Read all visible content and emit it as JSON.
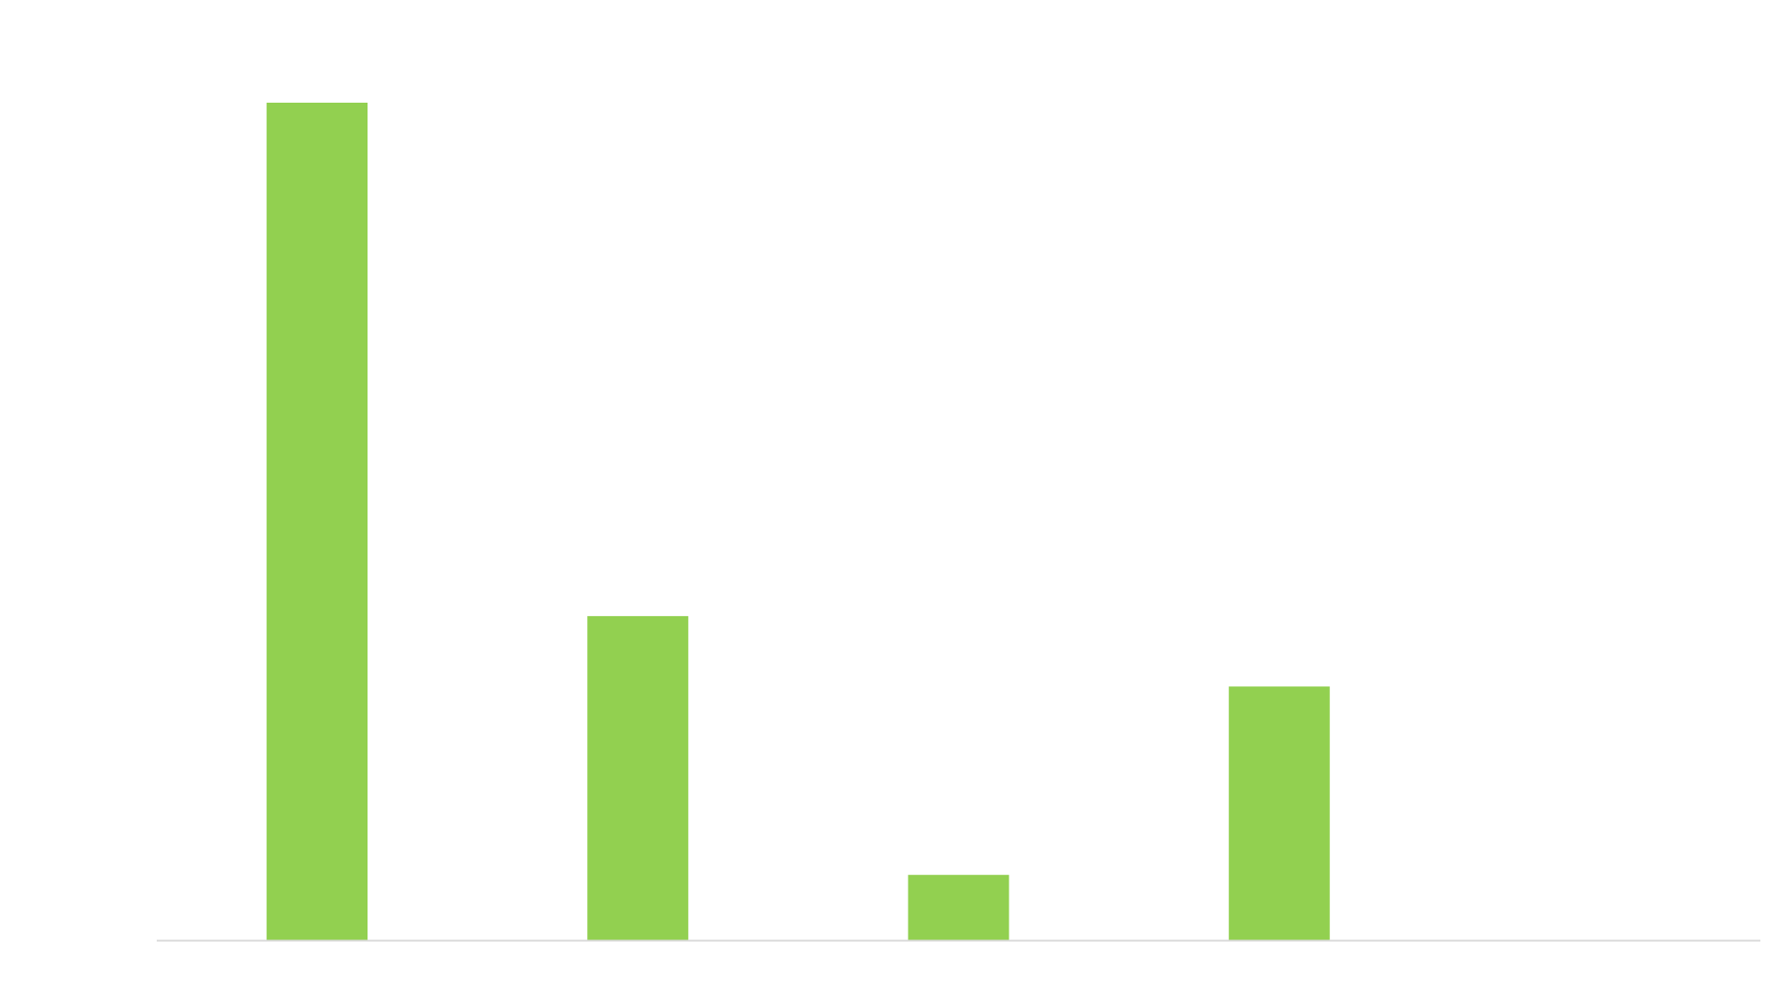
{
  "chart_data": {
    "type": "bar",
    "categories": [
      "",
      "",
      "",
      "",
      ""
    ],
    "values": [
      100,
      38.7,
      7.8,
      30.3,
      0
    ],
    "title": "",
    "xlabel": "",
    "ylabel": "",
    "ylim": [
      0,
      100
    ],
    "grid": false,
    "legend": "none",
    "colors": {
      "bar": "#92D050",
      "axis": "#D9D9D9",
      "background": "#FFFFFF"
    }
  }
}
